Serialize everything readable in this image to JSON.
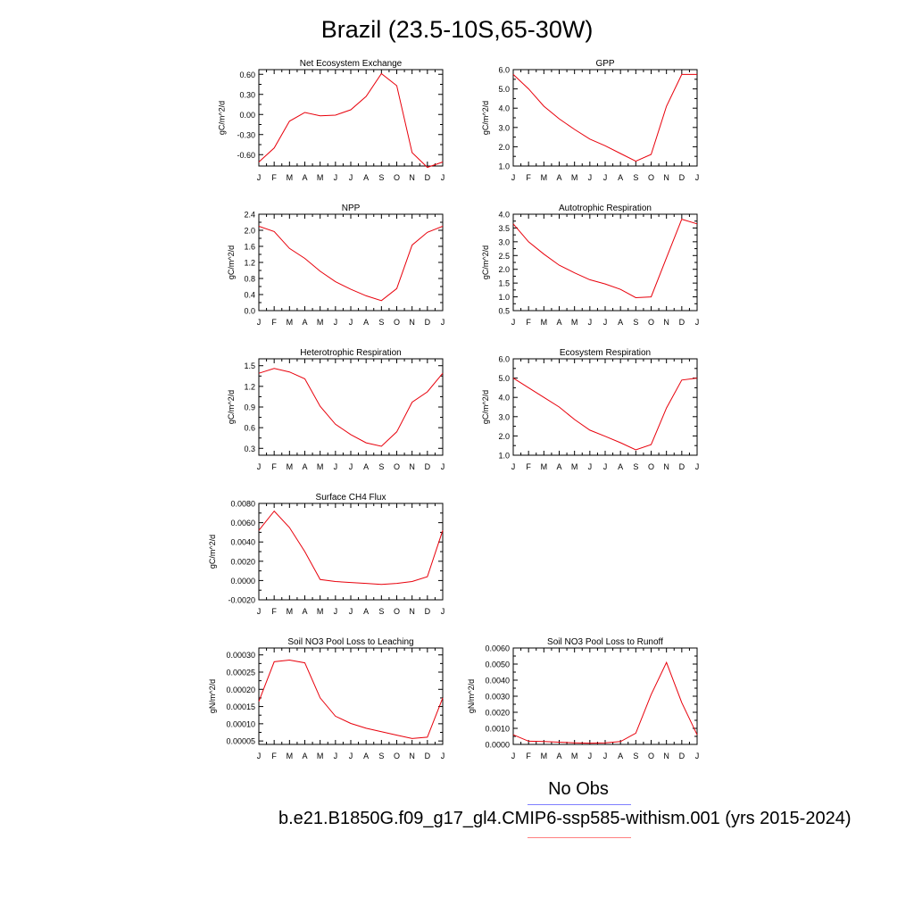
{
  "title": "Brazil (23.5-10S,65-30W)",
  "legend": {
    "obs_label": "No Obs",
    "case_label": "b.e21.B1850G.f09_g17_gl4.CMIP6-ssp585-withism.001 (yrs 2015-2024)",
    "obs_color": "#7f7fff",
    "case_color": "#ff7f7f"
  },
  "line_color": "#e8000b",
  "chart_data": [
    {
      "type": "line",
      "title": "Net Ecosystem Exchange",
      "ylabel": "gC/m^2/d",
      "categories": [
        "J",
        "F",
        "M",
        "A",
        "M",
        "J",
        "J",
        "A",
        "S",
        "O",
        "N",
        "D",
        "J"
      ],
      "values": [
        -0.71,
        -0.5,
        -0.1,
        0.03,
        -0.02,
        -0.01,
        0.07,
        0.27,
        0.61,
        0.43,
        -0.57,
        -0.79,
        -0.71
      ],
      "ylim": [
        -0.77,
        0.67
      ],
      "yticks": [
        -0.6,
        -0.3,
        0.0,
        0.3,
        0.6
      ],
      "yticklabels": [
        "-0.60",
        "-0.30",
        "0.00",
        "0.30",
        "0.60"
      ]
    },
    {
      "type": "line",
      "title": "GPP",
      "ylabel": "gC/m^2/d",
      "categories": [
        "J",
        "F",
        "M",
        "A",
        "M",
        "J",
        "J",
        "A",
        "S",
        "O",
        "N",
        "D",
        "J"
      ],
      "values": [
        5.75,
        5.0,
        4.1,
        3.45,
        2.9,
        2.4,
        2.05,
        1.65,
        1.25,
        1.6,
        4.1,
        5.75,
        5.75
      ],
      "ylim": [
        1.0,
        6.0
      ],
      "yticks": [
        1.0,
        2.0,
        3.0,
        4.0,
        5.0,
        6.0
      ],
      "yticklabels": [
        "1.0",
        "2.0",
        "3.0",
        "4.0",
        "5.0",
        "6.0"
      ]
    },
    {
      "type": "line",
      "title": "NPP",
      "ylabel": "gC/m^2/d",
      "categories": [
        "J",
        "F",
        "M",
        "A",
        "M",
        "J",
        "J",
        "A",
        "S",
        "O",
        "N",
        "D",
        "J"
      ],
      "values": [
        2.1,
        1.97,
        1.55,
        1.3,
        0.98,
        0.72,
        0.53,
        0.37,
        0.25,
        0.55,
        1.63,
        1.95,
        2.1
      ],
      "ylim": [
        0.0,
        2.4
      ],
      "yticks": [
        0.0,
        0.4,
        0.8,
        1.2,
        1.6,
        2.0,
        2.4
      ],
      "yticklabels": [
        "0.0",
        "0.4",
        "0.8",
        "1.2",
        "1.6",
        "2.0",
        "2.4"
      ]
    },
    {
      "type": "line",
      "title": "Autotrophic Respiration",
      "ylabel": "gC/m^2/d",
      "categories": [
        "J",
        "F",
        "M",
        "A",
        "M",
        "J",
        "J",
        "A",
        "S",
        "O",
        "N",
        "D",
        "J"
      ],
      "values": [
        3.65,
        3.0,
        2.55,
        2.15,
        1.87,
        1.62,
        1.47,
        1.27,
        0.97,
        1.0,
        2.42,
        3.82,
        3.65
      ],
      "ylim": [
        0.5,
        4.0
      ],
      "yticks": [
        0.5,
        1.0,
        1.5,
        2.0,
        2.5,
        3.0,
        3.5,
        4.0
      ],
      "yticklabels": [
        "0.5",
        "1.0",
        "1.5",
        "2.0",
        "2.5",
        "3.0",
        "3.5",
        "4.0"
      ]
    },
    {
      "type": "line",
      "title": "Heterotrophic Respiration",
      "ylabel": "gC/m^2/d",
      "categories": [
        "J",
        "F",
        "M",
        "A",
        "M",
        "J",
        "J",
        "A",
        "S",
        "O",
        "N",
        "D",
        "J"
      ],
      "values": [
        1.39,
        1.46,
        1.41,
        1.31,
        0.91,
        0.65,
        0.5,
        0.38,
        0.33,
        0.54,
        0.97,
        1.12,
        1.39
      ],
      "ylim": [
        0.2,
        1.6
      ],
      "yticks": [
        0.3,
        0.6,
        0.9,
        1.2,
        1.5
      ],
      "yticklabels": [
        "0.3",
        "0.6",
        "0.9",
        "1.2",
        "1.5"
      ]
    },
    {
      "type": "line",
      "title": "Ecosystem Respiration",
      "ylabel": "gC/m^2/d",
      "categories": [
        "J",
        "F",
        "M",
        "A",
        "M",
        "J",
        "J",
        "A",
        "S",
        "O",
        "N",
        "D",
        "J"
      ],
      "values": [
        5.0,
        4.5,
        4.0,
        3.5,
        2.85,
        2.3,
        1.98,
        1.65,
        1.28,
        1.55,
        3.45,
        4.9,
        5.0
      ],
      "ylim": [
        1.0,
        6.0
      ],
      "yticks": [
        1.0,
        2.0,
        3.0,
        4.0,
        5.0,
        6.0
      ],
      "yticklabels": [
        "1.0",
        "2.0",
        "3.0",
        "4.0",
        "5.0",
        "6.0"
      ]
    },
    {
      "type": "line",
      "title": "Surface CH4 Flux",
      "ylabel": "gC/m^2/d",
      "categories": [
        "J",
        "F",
        "M",
        "A",
        "M",
        "J",
        "J",
        "A",
        "S",
        "O",
        "N",
        "D",
        "J"
      ],
      "values": [
        0.0052,
        0.0072,
        0.0055,
        0.003,
        0.0001,
        -0.0001,
        -0.0002,
        -0.0003,
        -0.0004,
        -0.0003,
        -0.0001,
        0.0004,
        0.0052
      ],
      "ylim": [
        -0.002,
        0.008
      ],
      "yticks": [
        -0.002,
        0.0,
        0.002,
        0.004,
        0.006,
        0.008
      ],
      "yticklabels": [
        "-0.0020",
        "0.0000",
        "0.0020",
        "0.0040",
        "0.0060",
        "0.0080"
      ]
    },
    {
      "type": "line",
      "title": "Soil NO3 Pool Loss to Leaching",
      "ylabel": "gN/m^2/d",
      "categories": [
        "J",
        "F",
        "M",
        "A",
        "M",
        "J",
        "J",
        "A",
        "S",
        "O",
        "N",
        "D",
        "J"
      ],
      "values": [
        0.000165,
        0.00028,
        0.000285,
        0.000277,
        0.000175,
        0.000122,
        0.000101,
        8.7e-05,
        7.7e-05,
        6.7e-05,
        5.7e-05,
        6.1e-05,
        0.000175
      ],
      "ylim": [
        4e-05,
        0.00032
      ],
      "yticks": [
        5e-05,
        0.0001,
        0.00015,
        0.0002,
        0.00025,
        0.0003
      ],
      "yticklabels": [
        "0.00005",
        "0.00010",
        "0.00015",
        "0.00020",
        "0.00025",
        "0.00030"
      ]
    },
    {
      "type": "line",
      "title": "Soil NO3 Pool Loss to Runoff",
      "ylabel": "gN/m^2/d",
      "categories": [
        "J",
        "F",
        "M",
        "A",
        "M",
        "J",
        "J",
        "A",
        "S",
        "O",
        "N",
        "D",
        "J"
      ],
      "values": [
        0.0006,
        0.0002,
        0.00018,
        0.00014,
        0.0001,
        8e-05,
        0.0001,
        0.00018,
        0.0007,
        0.0031,
        0.0051,
        0.0026,
        0.0006
      ],
      "ylim": [
        0.0,
        0.006
      ],
      "yticks": [
        0.0,
        0.001,
        0.002,
        0.003,
        0.004,
        0.005,
        0.006
      ],
      "yticklabels": [
        "0.0000",
        "0.0010",
        "0.0020",
        "0.0030",
        "0.0040",
        "0.0050",
        "0.0060"
      ]
    }
  ]
}
